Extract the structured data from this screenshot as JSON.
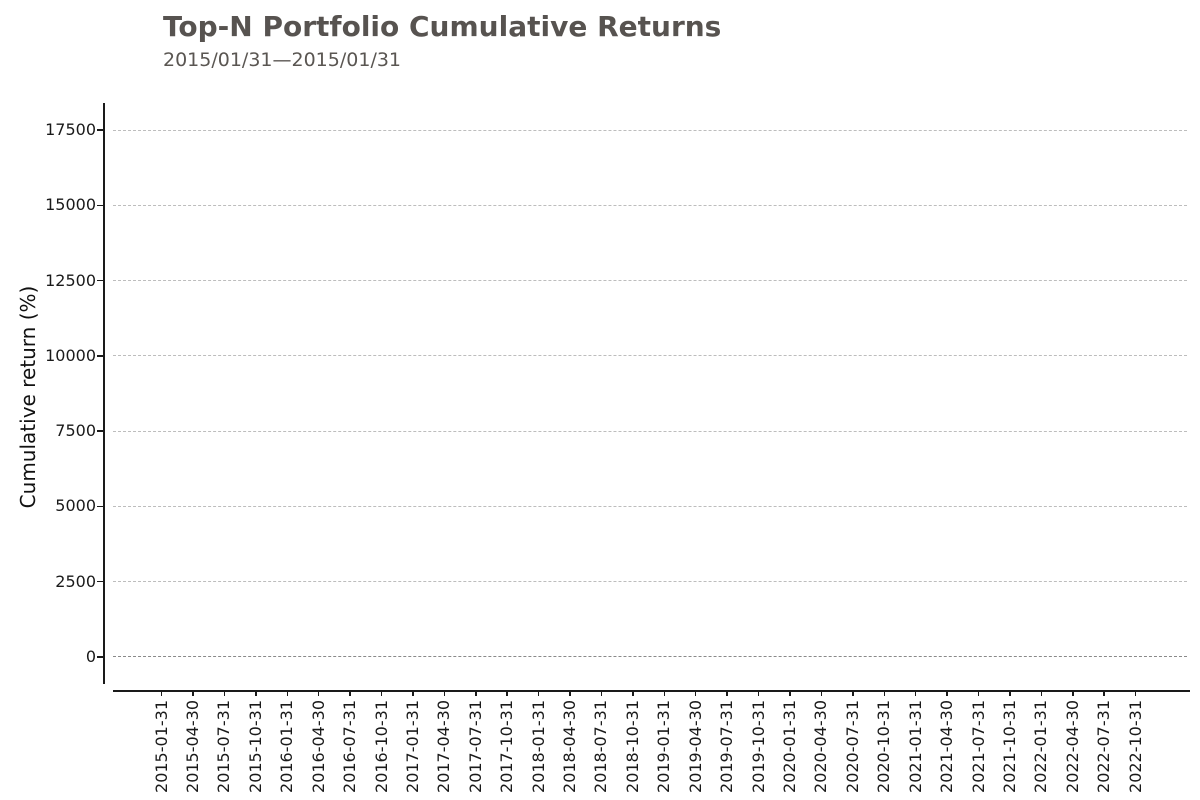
{
  "chart_data": {
    "type": "line",
    "title": "Top-N Portfolio Cumulative Returns",
    "subtitle": "2015/01/31—2015/01/31",
    "xlabel": "",
    "ylabel": "Cumulative return (%)",
    "x_ticks": [
      "2015-01-31",
      "2015-04-30",
      "2015-07-31",
      "2015-10-31",
      "2016-01-31",
      "2016-04-30",
      "2016-07-31",
      "2016-10-31",
      "2017-01-31",
      "2017-04-30",
      "2017-07-31",
      "2017-10-31",
      "2018-01-31",
      "2018-04-30",
      "2018-07-31",
      "2018-10-31",
      "2019-01-31",
      "2019-04-30",
      "2019-07-31",
      "2019-10-31",
      "2020-01-31",
      "2020-04-30",
      "2020-07-31",
      "2020-10-31",
      "2021-01-31",
      "2021-04-30",
      "2021-07-31",
      "2021-10-31",
      "2022-01-31",
      "2022-04-30",
      "2022-07-31",
      "2022-10-31"
    ],
    "y_ticks": [
      0,
      2500,
      5000,
      7500,
      10000,
      12500,
      15000,
      17500
    ],
    "ylim": [
      -900,
      18400
    ],
    "grid": "horizontal-dashed",
    "legend": "none",
    "series": [],
    "colors": {
      "title": "#575350",
      "grid": "#bdbdbd",
      "zero_line": "#8a8a8a",
      "axis": "#1a1a1a",
      "tick_label": "#1a1a1a",
      "background": "#ffffff"
    }
  }
}
